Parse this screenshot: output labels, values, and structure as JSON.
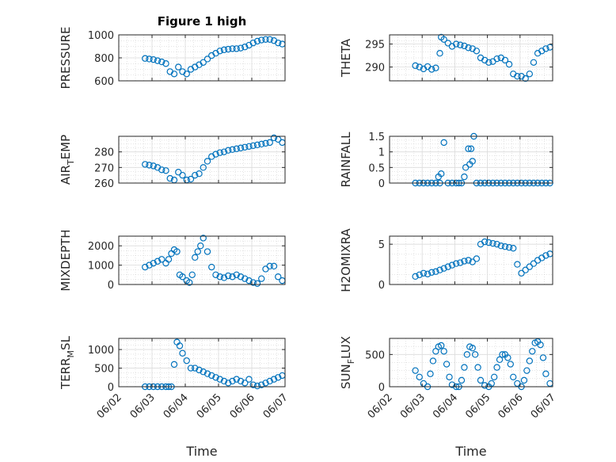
{
  "colors": {
    "marker": "#0072BD",
    "axis": "#262626",
    "grid": "#c8c8c8"
  },
  "xaxis": {
    "label": "Time",
    "ticks": [
      "06/02",
      "06/03",
      "06/04",
      "06/05",
      "06/06",
      "06/07"
    ],
    "range_days": [
      2,
      7
    ]
  },
  "chart_data": [
    {
      "type": "scatter",
      "title": "Figure 1 high",
      "ylabel": "PRESSURE",
      "ylabel_parts": [
        "PRESSURE"
      ],
      "ylim": [
        600,
        1000
      ],
      "yticks": [
        600,
        800,
        1000
      ],
      "ytick_labels": [
        "600",
        "800",
        "1000"
      ],
      "grid": true,
      "x": [
        "06/02 19:00",
        "06/02 22:00",
        "06/03 01:00",
        "06/03 04:00",
        "06/03 07:00",
        "06/03 10:00",
        "06/03 13:00",
        "06/03 16:00",
        "06/03 19:00",
        "06/03 22:00",
        "06/04 01:00",
        "06/04 04:00",
        "06/04 07:00",
        "06/04 10:00",
        "06/04 13:00",
        "06/04 16:00",
        "06/04 19:00",
        "06/04 22:00",
        "06/05 01:00",
        "06/05 04:00",
        "06/05 07:00",
        "06/05 10:00",
        "06/05 13:00",
        "06/05 16:00",
        "06/05 19:00",
        "06/05 22:00",
        "06/06 01:00",
        "06/06 04:00",
        "06/06 07:00",
        "06/06 10:00",
        "06/06 13:00",
        "06/06 16:00",
        "06/06 19:00",
        "06/06 22:00"
      ],
      "y": [
        795,
        790,
        785,
        775,
        765,
        750,
        680,
        660,
        720,
        680,
        660,
        700,
        720,
        740,
        760,
        790,
        820,
        840,
        860,
        870,
        875,
        880,
        880,
        885,
        895,
        910,
        930,
        945,
        955,
        960,
        960,
        950,
        930,
        920
      ]
    },
    {
      "type": "scatter",
      "title": "",
      "ylabel": "THETA",
      "ylabel_parts": [
        "THETA"
      ],
      "ylim": [
        287,
        297
      ],
      "yticks": [
        290,
        295
      ],
      "ytick_labels": [
        "290",
        "295"
      ],
      "grid": true,
      "x": [
        "06/02 19:00",
        "06/02 22:00",
        "06/03 01:00",
        "06/03 04:00",
        "06/03 07:00",
        "06/03 10:00",
        "06/03 13:00",
        "06/03 14:00",
        "06/03 16:00",
        "06/03 19:00",
        "06/03 22:00",
        "06/04 01:00",
        "06/04 04:00",
        "06/04 07:00",
        "06/04 10:00",
        "06/04 13:00",
        "06/04 16:00",
        "06/04 19:00",
        "06/04 22:00",
        "06/05 01:00",
        "06/05 04:00",
        "06/05 07:00",
        "06/05 10:00",
        "06/05 13:00",
        "06/05 16:00",
        "06/05 19:00",
        "06/05 22:00",
        "06/06 01:00",
        "06/06 04:00",
        "06/06 07:00",
        "06/06 10:00",
        "06/06 13:00",
        "06/06 16:00",
        "06/06 19:00",
        "06/06 22:00"
      ],
      "y": [
        290.3,
        290,
        289.6,
        290.1,
        289.5,
        289.8,
        293,
        296.5,
        296,
        295.2,
        294.5,
        295,
        294.8,
        294.6,
        294.2,
        294,
        293.5,
        292,
        291.5,
        291,
        291.2,
        291.8,
        292,
        291.5,
        290.6,
        288.5,
        288,
        288,
        287.5,
        288.5,
        291,
        293,
        293.5,
        294,
        294.3
      ]
    },
    {
      "type": "scatter",
      "title": "",
      "ylabel": "AIR_TEMP",
      "ylabel_parts": [
        "AIR",
        "T",
        "EMP"
      ],
      "ylim": [
        260,
        290
      ],
      "yticks": [
        260,
        270,
        280
      ],
      "ytick_labels": [
        "260",
        "270",
        "280"
      ],
      "grid": true,
      "x": [
        "06/02 19:00",
        "06/02 22:00",
        "06/03 01:00",
        "06/03 04:00",
        "06/03 07:00",
        "06/03 10:00",
        "06/03 13:00",
        "06/03 16:00",
        "06/03 19:00",
        "06/03 22:00",
        "06/04 01:00",
        "06/04 04:00",
        "06/04 07:00",
        "06/04 10:00",
        "06/04 13:00",
        "06/04 16:00",
        "06/04 19:00",
        "06/04 22:00",
        "06/05 01:00",
        "06/05 04:00",
        "06/05 07:00",
        "06/05 10:00",
        "06/05 13:00",
        "06/05 16:00",
        "06/05 19:00",
        "06/05 22:00",
        "06/06 01:00",
        "06/06 04:00",
        "06/06 07:00",
        "06/06 10:00",
        "06/06 13:00",
        "06/06 16:00",
        "06/06 19:00",
        "06/06 22:00"
      ],
      "y": [
        272,
        271.5,
        271,
        270,
        268.5,
        268,
        263,
        262,
        267,
        265,
        262,
        262.5,
        265,
        266,
        270,
        274,
        277,
        278.5,
        279.5,
        280,
        281,
        281.5,
        282,
        282.5,
        283,
        283.5,
        284,
        284.5,
        285,
        285.5,
        286,
        289,
        288,
        286
      ]
    },
    {
      "type": "scatter",
      "title": "",
      "ylabel": "RAINFALL",
      "ylabel_parts": [
        "RAINFALL"
      ],
      "ylim": [
        0,
        1.5
      ],
      "yticks": [
        0,
        0.5,
        1,
        1.5
      ],
      "ytick_labels": [
        "0",
        "0.5",
        "1",
        "1.5"
      ],
      "grid": true,
      "x": [
        "06/02 19:00",
        "06/02 22:00",
        "06/03 01:00",
        "06/03 04:00",
        "06/03 07:00",
        "06/03 10:00",
        "06/03 12:00",
        "06/03 13:00",
        "06/03 14:00",
        "06/03 16:00",
        "06/03 19:00",
        "06/03 22:00",
        "06/04 01:00",
        "06/04 03:00",
        "06/04 05:00",
        "06/04 07:00",
        "06/04 08:00",
        "06/04 10:00",
        "06/04 11:00",
        "06/04 12:00",
        "06/04 13:00",
        "06/04 14:00",
        "06/04 16:00",
        "06/04 19:00",
        "06/04 22:00",
        "06/05 01:00",
        "06/05 04:00",
        "06/05 07:00",
        "06/05 10:00",
        "06/05 13:00",
        "06/05 16:00",
        "06/05 19:00",
        "06/05 22:00",
        "06/06 01:00",
        "06/06 04:00",
        "06/06 07:00",
        "06/06 10:00",
        "06/06 13:00",
        "06/06 16:00",
        "06/06 19:00",
        "06/06 22:00"
      ],
      "y": [
        0,
        0,
        0,
        0,
        0,
        0,
        0.2,
        0,
        0.3,
        1.3,
        0,
        0,
        0,
        0,
        0,
        0.2,
        0.5,
        1.1,
        0.6,
        1.1,
        0.7,
        1.5,
        0,
        0,
        0,
        0,
        0,
        0,
        0,
        0,
        0,
        0,
        0,
        0,
        0,
        0,
        0,
        0,
        0,
        0,
        0
      ]
    },
    {
      "type": "scatter",
      "title": "",
      "ylabel": "MIXDEPTH",
      "ylabel_parts": [
        "MIXDEPTH"
      ],
      "ylim": [
        0,
        2500
      ],
      "yticks": [
        0,
        1000,
        2000
      ],
      "ytick_labels": [
        "0",
        "1000",
        "2000"
      ],
      "grid": true,
      "x": [
        "06/02 19:00",
        "06/02 22:00",
        "06/03 01:00",
        "06/03 04:00",
        "06/03 07:00",
        "06/03 10:00",
        "06/03 12:00",
        "06/03 14:00",
        "06/03 16:00",
        "06/03 18:00",
        "06/03 20:00",
        "06/03 22:00",
        "06/04 01:00",
        "06/04 03:00",
        "06/04 05:00",
        "06/04 07:00",
        "06/04 09:00",
        "06/04 11:00",
        "06/04 13:00",
        "06/04 16:00",
        "06/04 19:00",
        "06/04 22:00",
        "06/05 01:00",
        "06/05 04:00",
        "06/05 07:00",
        "06/05 10:00",
        "06/05 13:00",
        "06/05 16:00",
        "06/05 19:00",
        "06/05 22:00",
        "06/06 01:00",
        "06/06 04:00",
        "06/06 07:00",
        "06/06 10:00",
        "06/06 13:00",
        "06/06 16:00",
        "06/06 19:00",
        "06/06 22:00"
      ],
      "y": [
        900,
        1000,
        1100,
        1200,
        1300,
        1100,
        1300,
        1600,
        1800,
        1700,
        500,
        400,
        200,
        100,
        500,
        1400,
        1700,
        2000,
        2400,
        1700,
        900,
        500,
        400,
        350,
        450,
        400,
        500,
        400,
        300,
        200,
        100,
        50,
        300,
        800,
        950,
        950,
        400,
        200
      ]
    },
    {
      "type": "scatter",
      "title": "",
      "ylabel": "H2OMIXRA",
      "ylabel_parts": [
        "H2OMIXRA"
      ],
      "ylim": [
        0,
        6
      ],
      "yticks": [
        0,
        5
      ],
      "ytick_labels": [
        "0",
        "5"
      ],
      "grid": true,
      "x": [
        "06/02 19:00",
        "06/02 22:00",
        "06/03 01:00",
        "06/03 04:00",
        "06/03 07:00",
        "06/03 10:00",
        "06/03 13:00",
        "06/03 16:00",
        "06/03 19:00",
        "06/03 22:00",
        "06/04 01:00",
        "06/04 04:00",
        "06/04 07:00",
        "06/04 10:00",
        "06/04 13:00",
        "06/04 16:00",
        "06/04 19:00",
        "06/04 22:00",
        "06/05 01:00",
        "06/05 04:00",
        "06/05 07:00",
        "06/05 10:00",
        "06/05 13:00",
        "06/05 16:00",
        "06/05 19:00",
        "06/05 22:00",
        "06/06 01:00",
        "06/06 04:00",
        "06/06 07:00",
        "06/06 10:00",
        "06/06 13:00",
        "06/06 16:00",
        "06/06 19:00",
        "06/06 22:00"
      ],
      "y": [
        1,
        1.2,
        1.4,
        1.3,
        1.5,
        1.6,
        1.8,
        2,
        2.2,
        2.4,
        2.6,
        2.7,
        2.9,
        3,
        2.8,
        3.2,
        5,
        5.3,
        5.2,
        5.1,
        5,
        4.8,
        4.7,
        4.6,
        4.5,
        2.5,
        1.4,
        1.8,
        2.2,
        2.6,
        3,
        3.3,
        3.6,
        3.8
      ]
    },
    {
      "type": "scatter",
      "title": "",
      "ylabel": "TERR_MSL",
      "ylabel_parts": [
        "TERR",
        "M",
        "SL"
      ],
      "ylim": [
        0,
        1300
      ],
      "yticks": [
        0,
        500,
        1000
      ],
      "ytick_labels": [
        "0",
        "500",
        "1000"
      ],
      "grid": true,
      "x": [
        "06/02 19:00",
        "06/02 22:00",
        "06/03 01:00",
        "06/03 04:00",
        "06/03 07:00",
        "06/03 10:00",
        "06/03 12:00",
        "06/03 14:00",
        "06/03 16:00",
        "06/03 18:00",
        "06/03 20:00",
        "06/03 22:00",
        "06/04 01:00",
        "06/04 04:00",
        "06/04 07:00",
        "06/04 10:00",
        "06/04 13:00",
        "06/04 16:00",
        "06/04 19:00",
        "06/04 22:00",
        "06/05 01:00",
        "06/05 04:00",
        "06/05 07:00",
        "06/05 10:00",
        "06/05 13:00",
        "06/05 16:00",
        "06/05 19:00",
        "06/05 22:00",
        "06/06 01:00",
        "06/06 04:00",
        "06/06 07:00",
        "06/06 10:00",
        "06/06 13:00",
        "06/06 16:00",
        "06/06 19:00",
        "06/06 22:00"
      ],
      "y": [
        0,
        0,
        0,
        0,
        0,
        0,
        0,
        0,
        600,
        1200,
        1100,
        900,
        700,
        500,
        500,
        450,
        400,
        350,
        300,
        250,
        200,
        150,
        100,
        150,
        200,
        150,
        100,
        200,
        50,
        20,
        50,
        100,
        150,
        200,
        250,
        300
      ]
    },
    {
      "type": "scatter",
      "title": "",
      "ylabel": "SUN_FLUX",
      "ylabel_parts": [
        "SUN",
        "F",
        "LUX"
      ],
      "ylim": [
        0,
        750
      ],
      "yticks": [
        0,
        500
      ],
      "ytick_labels": [
        "0",
        "500"
      ],
      "grid": true,
      "x": [
        "06/02 19:00",
        "06/02 22:00",
        "06/03 01:00",
        "06/03 04:00",
        "06/03 06:00",
        "06/03 08:00",
        "06/03 10:00",
        "06/03 12:00",
        "06/03 14:00",
        "06/03 16:00",
        "06/03 18:00",
        "06/03 20:00",
        "06/03 22:00",
        "06/04 01:00",
        "06/04 03:00",
        "06/04 05:00",
        "06/04 07:00",
        "06/04 09:00",
        "06/04 11:00",
        "06/04 13:00",
        "06/04 15:00",
        "06/04 17:00",
        "06/04 19:00",
        "06/04 22:00",
        "06/05 01:00",
        "06/05 03:00",
        "06/05 05:00",
        "06/05 07:00",
        "06/05 09:00",
        "06/05 11:00",
        "06/05 13:00",
        "06/05 15:00",
        "06/05 17:00",
        "06/05 19:00",
        "06/05 22:00",
        "06/06 01:00",
        "06/06 03:00",
        "06/06 05:00",
        "06/06 07:00",
        "06/06 09:00",
        "06/06 11:00",
        "06/06 13:00",
        "06/06 15:00",
        "06/06 17:00",
        "06/06 19:00",
        "06/06 22:00"
      ],
      "y": [
        250,
        150,
        50,
        0,
        200,
        400,
        550,
        620,
        640,
        550,
        350,
        150,
        30,
        0,
        0,
        100,
        300,
        500,
        620,
        600,
        500,
        300,
        100,
        20,
        0,
        50,
        150,
        300,
        420,
        500,
        500,
        450,
        350,
        150,
        50,
        0,
        100,
        250,
        400,
        550,
        680,
        700,
        650,
        450,
        200,
        50
      ]
    }
  ]
}
